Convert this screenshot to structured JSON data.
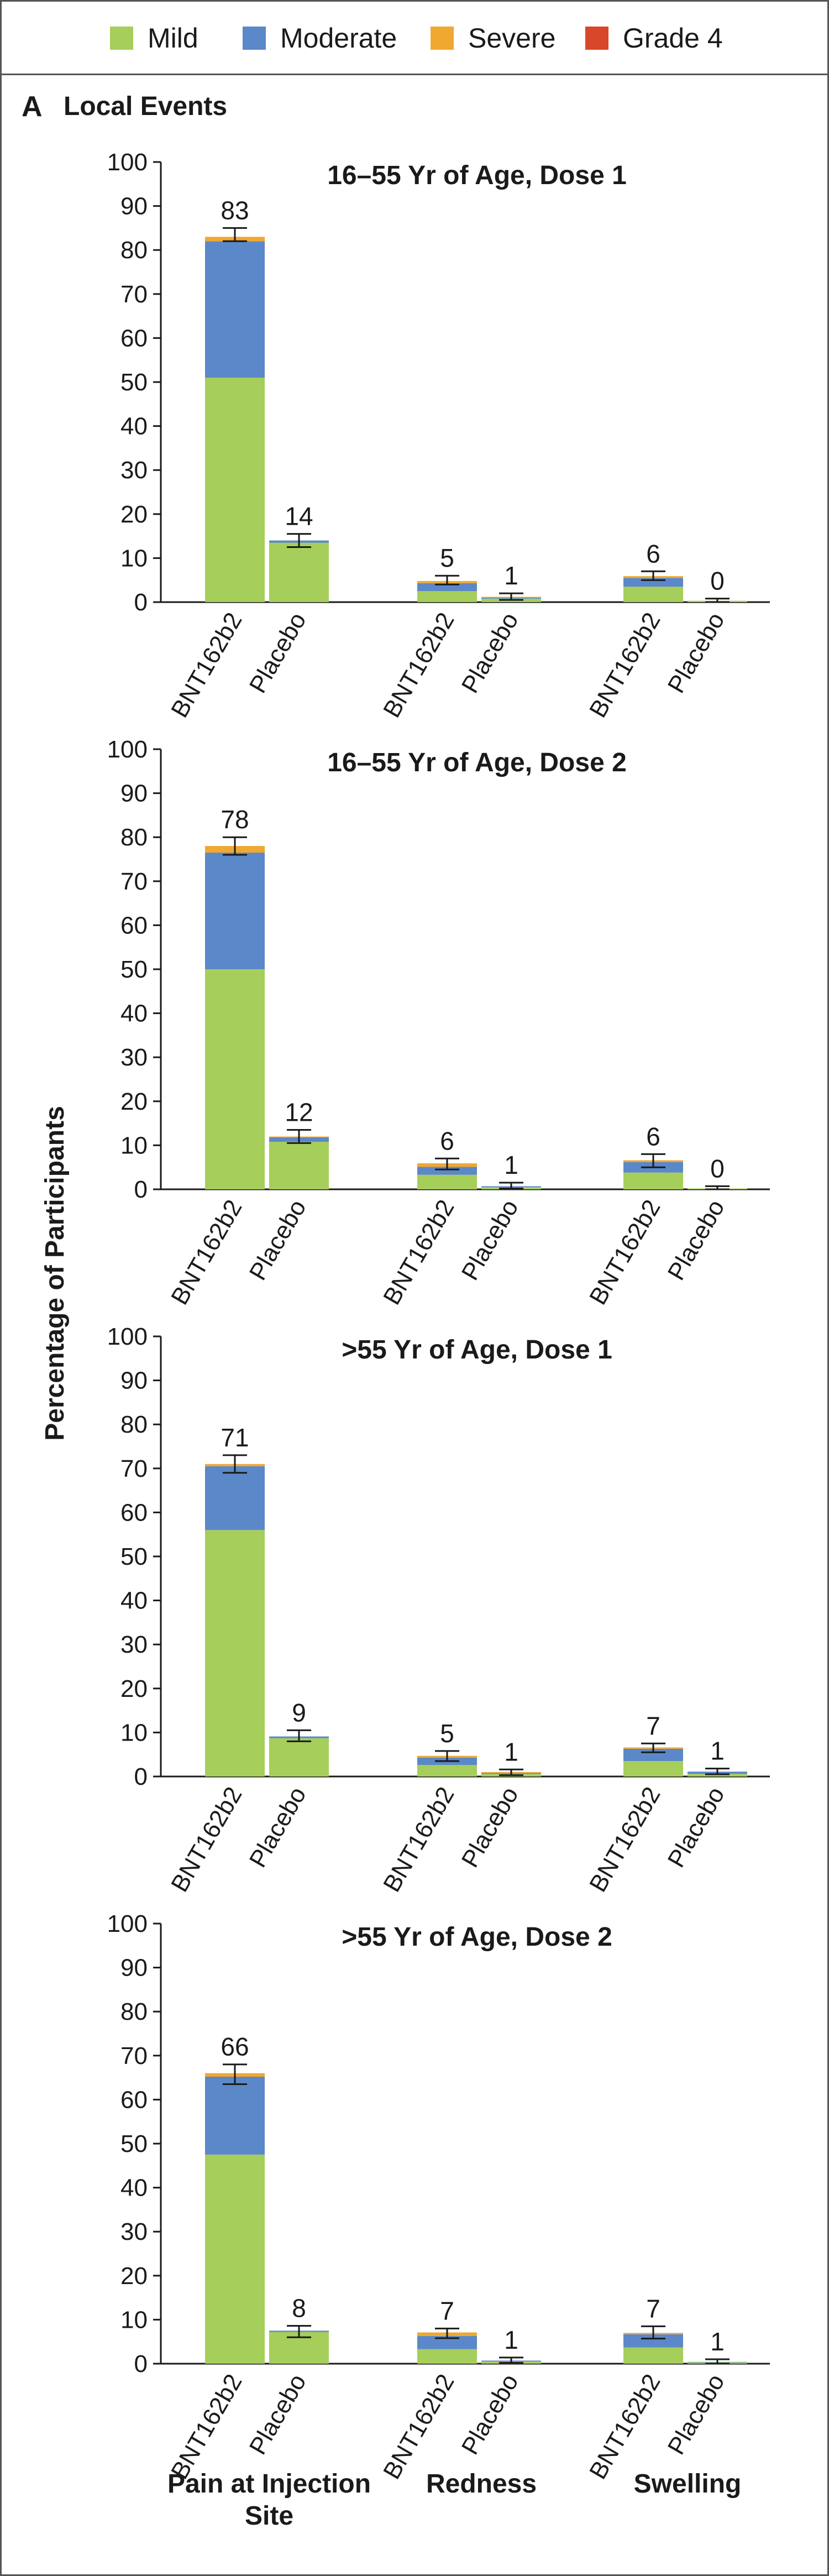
{
  "legend": {
    "items": [
      {
        "label": "Mild",
        "color": "#a6ce5a"
      },
      {
        "label": "Moderate",
        "color": "#5b88c8"
      },
      {
        "label": "Severe",
        "color": "#f0a830"
      },
      {
        "label": "Grade 4",
        "color": "#d9472b"
      }
    ]
  },
  "panel": {
    "letter": "A",
    "title": "Local Events"
  },
  "chart_data": {
    "type": "bar",
    "stacked": true,
    "ylabel": "Percentage of Participants",
    "ylim": [
      0,
      100
    ],
    "yticks": [
      0,
      10,
      20,
      30,
      40,
      50,
      60,
      70,
      80,
      90,
      100
    ],
    "groups": [
      {
        "label": "Pain at Injection Site",
        "lines": [
          "Pain at Injection",
          "Site"
        ]
      },
      {
        "label": "Redness",
        "lines": [
          "Redness"
        ]
      },
      {
        "label": "Swelling",
        "lines": [
          "Swelling"
        ]
      }
    ],
    "bar_names": [
      "BNT162b2",
      "Placebo"
    ],
    "series_names": [
      "Mild",
      "Moderate",
      "Severe",
      "Grade 4"
    ],
    "colors": {
      "Mild": "#a6ce5a",
      "Moderate": "#5b88c8",
      "Severe": "#f0a830",
      "Grade 4": "#d9472b"
    },
    "subplots": [
      {
        "title": "16–55 Yr of Age, Dose 1",
        "bars": [
          {
            "group": "Pain at Injection Site",
            "name": "BNT162b2",
            "mild": 51,
            "moderate": 31,
            "severe": 1,
            "grade4": 0,
            "total": 83,
            "ci": [
              82,
              85
            ]
          },
          {
            "group": "Pain at Injection Site",
            "name": "Placebo",
            "mild": 13.5,
            "moderate": 0.5,
            "severe": 0,
            "grade4": 0,
            "total": 14,
            "ci": [
              12.5,
              15.5
            ]
          },
          {
            "group": "Redness",
            "name": "BNT162b2",
            "mild": 2.5,
            "moderate": 1.8,
            "severe": 0.5,
            "grade4": 0,
            "total": 5,
            "ci": [
              4,
              6
            ]
          },
          {
            "group": "Redness",
            "name": "Placebo",
            "mild": 0.8,
            "moderate": 0.2,
            "severe": 0.2,
            "grade4": 0,
            "total": 1,
            "ci": [
              0.5,
              2
            ]
          },
          {
            "group": "Swelling",
            "name": "BNT162b2",
            "mild": 3.5,
            "moderate": 2,
            "severe": 0.4,
            "grade4": 0,
            "total": 6,
            "ci": [
              5,
              7
            ]
          },
          {
            "group": "Swelling",
            "name": "Placebo",
            "mild": 0.3,
            "moderate": 0,
            "severe": 0,
            "grade4": 0,
            "total": 0,
            "ci": [
              0,
              0.8
            ]
          }
        ]
      },
      {
        "title": "16–55 Yr of Age, Dose 2",
        "bars": [
          {
            "group": "Pain at Injection Site",
            "name": "BNT162b2",
            "mild": 50,
            "moderate": 26.5,
            "severe": 1.5,
            "grade4": 0,
            "total": 78,
            "ci": [
              76,
              80
            ]
          },
          {
            "group": "Pain at Injection Site",
            "name": "Placebo",
            "mild": 10.8,
            "moderate": 1,
            "severe": 0.2,
            "grade4": 0,
            "total": 12,
            "ci": [
              10.5,
              13.5
            ]
          },
          {
            "group": "Redness",
            "name": "BNT162b2",
            "mild": 3.3,
            "moderate": 1.8,
            "severe": 0.8,
            "grade4": 0,
            "total": 6,
            "ci": [
              4.5,
              7
            ]
          },
          {
            "group": "Redness",
            "name": "Placebo",
            "mild": 0.5,
            "moderate": 0.2,
            "severe": 0,
            "grade4": 0,
            "total": 1,
            "ci": [
              0.2,
              1.5
            ]
          },
          {
            "group": "Swelling",
            "name": "BNT162b2",
            "mild": 3.8,
            "moderate": 2.4,
            "severe": 0.4,
            "grade4": 0,
            "total": 6,
            "ci": [
              5,
              8
            ]
          },
          {
            "group": "Swelling",
            "name": "Placebo",
            "mild": 0.2,
            "moderate": 0,
            "severe": 0,
            "grade4": 0,
            "total": 0,
            "ci": [
              0,
              0.7
            ]
          }
        ]
      },
      {
        "title": ">55 Yr of Age, Dose 1",
        "bars": [
          {
            "group": "Pain at Injection Site",
            "name": "BNT162b2",
            "mild": 56,
            "moderate": 14.5,
            "severe": 0.5,
            "grade4": 0,
            "total": 71,
            "ci": [
              69,
              73
            ]
          },
          {
            "group": "Pain at Injection Site",
            "name": "Placebo",
            "mild": 8.7,
            "moderate": 0.4,
            "severe": 0,
            "grade4": 0,
            "total": 9,
            "ci": [
              8,
              10.5
            ]
          },
          {
            "group": "Redness",
            "name": "BNT162b2",
            "mild": 2.6,
            "moderate": 1.7,
            "severe": 0.4,
            "grade4": 0,
            "total": 5,
            "ci": [
              3.5,
              5.8
            ]
          },
          {
            "group": "Redness",
            "name": "Placebo",
            "mild": 0.6,
            "moderate": 0.2,
            "severe": 0.2,
            "grade4": 0,
            "total": 1,
            "ci": [
              0.3,
              1.6
            ]
          },
          {
            "group": "Swelling",
            "name": "BNT162b2",
            "mild": 3.5,
            "moderate": 2.8,
            "severe": 0.3,
            "grade4": 0,
            "total": 7,
            "ci": [
              5.5,
              7.5
            ]
          },
          {
            "group": "Swelling",
            "name": "Placebo",
            "mild": 0.6,
            "moderate": 0.5,
            "severe": 0,
            "grade4": 0,
            "total": 1,
            "ci": [
              0.5,
              1.8
            ]
          }
        ]
      },
      {
        "title": ">55 Yr of Age, Dose 2",
        "bars": [
          {
            "group": "Pain at Injection Site",
            "name": "BNT162b2",
            "mild": 47.5,
            "moderate": 17.7,
            "severe": 0.8,
            "grade4": 0,
            "total": 66,
            "ci": [
              63.5,
              68
            ]
          },
          {
            "group": "Pain at Injection Site",
            "name": "Placebo",
            "mild": 7.2,
            "moderate": 0.3,
            "severe": 0,
            "grade4": 0,
            "total": 8,
            "ci": [
              6,
              8.6
            ]
          },
          {
            "group": "Redness",
            "name": "BNT162b2",
            "mild": 3.3,
            "moderate": 3,
            "severe": 0.8,
            "grade4": 0,
            "total": 7,
            "ci": [
              5.8,
              8
            ]
          },
          {
            "group": "Redness",
            "name": "Placebo",
            "mild": 0.5,
            "moderate": 0.2,
            "severe": 0,
            "grade4": 0,
            "total": 1,
            "ci": [
              0.2,
              1.4
            ]
          },
          {
            "group": "Swelling",
            "name": "BNT162b2",
            "mild": 3.7,
            "moderate": 3,
            "severe": 0.3,
            "grade4": 0,
            "total": 7,
            "ci": [
              5.7,
              8.5
            ]
          },
          {
            "group": "Swelling",
            "name": "Placebo",
            "mild": 0.3,
            "moderate": 0.1,
            "severe": 0,
            "grade4": 0,
            "total": 1,
            "ci": [
              0,
              1
            ]
          }
        ]
      }
    ]
  }
}
